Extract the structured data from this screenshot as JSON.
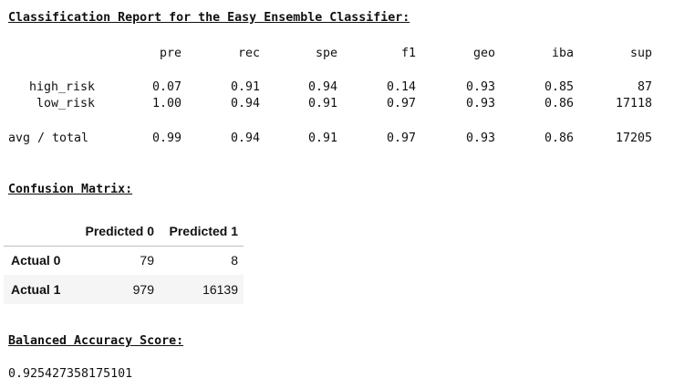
{
  "report": {
    "heading": "Classification Report for the Easy Ensemble Classifier:",
    "columns": [
      "pre",
      "rec",
      "spe",
      "f1",
      "geo",
      "iba",
      "sup"
    ],
    "rows": [
      {
        "label": "high_risk",
        "values": [
          "0.07",
          "0.91",
          "0.94",
          "0.14",
          "0.93",
          "0.85",
          "87"
        ]
      },
      {
        "label": "low_risk",
        "values": [
          "1.00",
          "0.94",
          "0.91",
          "0.97",
          "0.93",
          "0.86",
          "17118"
        ]
      }
    ],
    "total": {
      "label": "avg / total",
      "values": [
        "0.99",
        "0.94",
        "0.91",
        "0.97",
        "0.93",
        "0.86",
        "17205"
      ]
    }
  },
  "confusion": {
    "heading": "Confusion Matrix:",
    "columns": [
      "Predicted 0",
      "Predicted 1"
    ],
    "rows": [
      {
        "label": "Actual 0",
        "values": [
          "79",
          "8"
        ]
      },
      {
        "label": "Actual 1",
        "values": [
          "979",
          "16139"
        ]
      }
    ]
  },
  "balanced": {
    "heading": "Balanced Accuracy Score:",
    "value": "0.925427358175101"
  }
}
